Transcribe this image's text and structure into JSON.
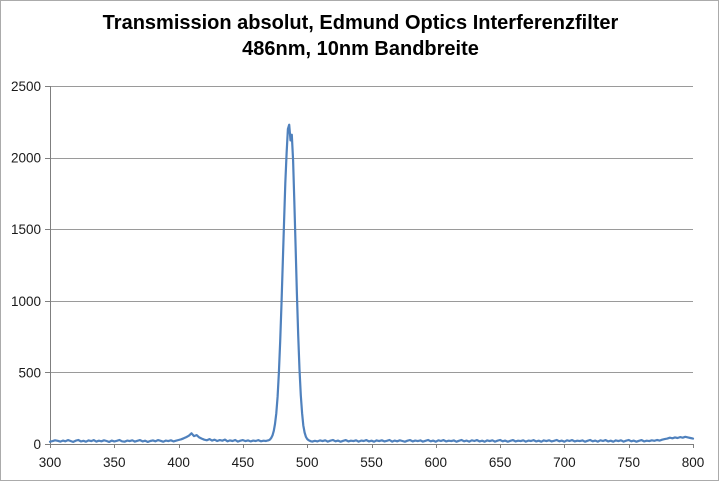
{
  "title": {
    "line1": "Transmission absolut, Edmund Optics Interferenzfilter",
    "line2": "486nm, 10nm Bandbreite"
  },
  "colors": {
    "line": "#4F81BD",
    "gridline": "#9a9a9a",
    "axis": "#7f7f7f",
    "frame_border": "#ababab",
    "tick_text": "#1a1a1a",
    "title_text": "#000000"
  },
  "chart_data": {
    "type": "line",
    "title": "Transmission absolut, Edmund Optics Interferenzfilter 486nm, 10nm Bandbreite",
    "xlabel": "",
    "ylabel": "",
    "xlim": [
      300,
      800
    ],
    "ylim": [
      0,
      2500
    ],
    "x_ticks": [
      300,
      350,
      400,
      450,
      500,
      550,
      600,
      650,
      700,
      750,
      800
    ],
    "y_ticks": [
      0,
      500,
      1000,
      1500,
      2000,
      2500
    ],
    "grid": "horizontal-only",
    "legend_position": "none",
    "peak_summary": {
      "center_nm": 486,
      "peak_value": 2230,
      "fwhm_nm": 10,
      "baseline_value": 20
    },
    "series": [
      {
        "name": "Transmission",
        "color": "#4F81BD",
        "points": [
          [
            300,
            16
          ],
          [
            302,
            20
          ],
          [
            304,
            26
          ],
          [
            306,
            22
          ],
          [
            308,
            17
          ],
          [
            310,
            24
          ],
          [
            312,
            19
          ],
          [
            314,
            27
          ],
          [
            316,
            21
          ],
          [
            318,
            15
          ],
          [
            320,
            23
          ],
          [
            322,
            28
          ],
          [
            324,
            18
          ],
          [
            326,
            22
          ],
          [
            328,
            16
          ],
          [
            330,
            25
          ],
          [
            332,
            20
          ],
          [
            334,
            27
          ],
          [
            336,
            17
          ],
          [
            338,
            23
          ],
          [
            340,
            19
          ],
          [
            342,
            26
          ],
          [
            344,
            21
          ],
          [
            346,
            15
          ],
          [
            348,
            24
          ],
          [
            350,
            18
          ],
          [
            352,
            22
          ],
          [
            354,
            28
          ],
          [
            356,
            19
          ],
          [
            358,
            16
          ],
          [
            360,
            24
          ],
          [
            362,
            20
          ],
          [
            364,
            26
          ],
          [
            366,
            17
          ],
          [
            368,
            22
          ],
          [
            370,
            27
          ],
          [
            372,
            18
          ],
          [
            374,
            23
          ],
          [
            376,
            15
          ],
          [
            378,
            21
          ],
          [
            380,
            25
          ],
          [
            382,
            19
          ],
          [
            384,
            27
          ],
          [
            386,
            22
          ],
          [
            388,
            16
          ],
          [
            390,
            24
          ],
          [
            392,
            20
          ],
          [
            394,
            26
          ],
          [
            396,
            18
          ],
          [
            398,
            23
          ],
          [
            400,
            28
          ],
          [
            402,
            33
          ],
          [
            404,
            40
          ],
          [
            406,
            48
          ],
          [
            408,
            58
          ],
          [
            410,
            75
          ],
          [
            412,
            55
          ],
          [
            414,
            62
          ],
          [
            416,
            46
          ],
          [
            418,
            38
          ],
          [
            420,
            30
          ],
          [
            422,
            26
          ],
          [
            424,
            34
          ],
          [
            426,
            24
          ],
          [
            428,
            30
          ],
          [
            430,
            21
          ],
          [
            432,
            27
          ],
          [
            434,
            23
          ],
          [
            436,
            31
          ],
          [
            438,
            19
          ],
          [
            440,
            25
          ],
          [
            442,
            21
          ],
          [
            444,
            28
          ],
          [
            446,
            17
          ],
          [
            448,
            23
          ],
          [
            450,
            27
          ],
          [
            452,
            20
          ],
          [
            454,
            25
          ],
          [
            456,
            18
          ],
          [
            458,
            24
          ],
          [
            460,
            21
          ],
          [
            462,
            27
          ],
          [
            464,
            19
          ],
          [
            466,
            23
          ],
          [
            468,
            21
          ],
          [
            469,
            24
          ],
          [
            470,
            26
          ],
          [
            471,
            31
          ],
          [
            472,
            42
          ],
          [
            473,
            60
          ],
          [
            474,
            92
          ],
          [
            475,
            140
          ],
          [
            476,
            215
          ],
          [
            477,
            330
          ],
          [
            478,
            500
          ],
          [
            479,
            720
          ],
          [
            480,
            980
          ],
          [
            481,
            1270
          ],
          [
            482,
            1560
          ],
          [
            483,
            1820
          ],
          [
            484,
            2030
          ],
          [
            485,
            2200
          ],
          [
            486,
            2230
          ],
          [
            487,
            2120
          ],
          [
            488,
            2160
          ],
          [
            489,
            1980
          ],
          [
            490,
            1700
          ],
          [
            491,
            1380
          ],
          [
            492,
            1050
          ],
          [
            493,
            760
          ],
          [
            494,
            520
          ],
          [
            495,
            340
          ],
          [
            496,
            215
          ],
          [
            497,
            130
          ],
          [
            498,
            80
          ],
          [
            499,
            50
          ],
          [
            500,
            35
          ],
          [
            501,
            27
          ],
          [
            502,
            22
          ],
          [
            503,
            19
          ],
          [
            504,
            17
          ],
          [
            506,
            22
          ],
          [
            508,
            18
          ],
          [
            510,
            25
          ],
          [
            512,
            20
          ],
          [
            514,
            26
          ],
          [
            516,
            17
          ],
          [
            518,
            23
          ],
          [
            520,
            28
          ],
          [
            522,
            19
          ],
          [
            524,
            24
          ],
          [
            526,
            16
          ],
          [
            528,
            22
          ],
          [
            530,
            27
          ],
          [
            532,
            18
          ],
          [
            534,
            23
          ],
          [
            536,
            20
          ],
          [
            538,
            26
          ],
          [
            540,
            17
          ],
          [
            542,
            24
          ],
          [
            544,
            21
          ],
          [
            546,
            27
          ],
          [
            548,
            18
          ],
          [
            550,
            23
          ],
          [
            552,
            16
          ],
          [
            554,
            25
          ],
          [
            556,
            20
          ],
          [
            558,
            26
          ],
          [
            560,
            18
          ],
          [
            562,
            22
          ],
          [
            564,
            28
          ],
          [
            566,
            17
          ],
          [
            568,
            24
          ],
          [
            570,
            19
          ],
          [
            572,
            26
          ],
          [
            574,
            21
          ],
          [
            576,
            16
          ],
          [
            578,
            23
          ],
          [
            580,
            27
          ],
          [
            582,
            18
          ],
          [
            584,
            24
          ],
          [
            586,
            20
          ],
          [
            588,
            25
          ],
          [
            590,
            17
          ],
          [
            592,
            22
          ],
          [
            594,
            28
          ],
          [
            596,
            19
          ],
          [
            598,
            24
          ],
          [
            600,
            16
          ],
          [
            602,
            26
          ],
          [
            604,
            21
          ],
          [
            606,
            27
          ],
          [
            608,
            18
          ],
          [
            610,
            23
          ],
          [
            612,
            20
          ],
          [
            614,
            25
          ],
          [
            616,
            16
          ],
          [
            618,
            22
          ],
          [
            620,
            28
          ],
          [
            622,
            19
          ],
          [
            624,
            24
          ],
          [
            626,
            17
          ],
          [
            628,
            26
          ],
          [
            630,
            21
          ],
          [
            632,
            27
          ],
          [
            634,
            18
          ],
          [
            636,
            23
          ],
          [
            638,
            16
          ],
          [
            640,
            25
          ],
          [
            642,
            20
          ],
          [
            644,
            26
          ],
          [
            646,
            17
          ],
          [
            648,
            23
          ],
          [
            650,
            28
          ],
          [
            652,
            19
          ],
          [
            654,
            24
          ],
          [
            656,
            16
          ],
          [
            658,
            22
          ],
          [
            660,
            27
          ],
          [
            662,
            18
          ],
          [
            664,
            23
          ],
          [
            666,
            20
          ],
          [
            668,
            26
          ],
          [
            670,
            17
          ],
          [
            672,
            24
          ],
          [
            674,
            21
          ],
          [
            676,
            27
          ],
          [
            678,
            18
          ],
          [
            680,
            23
          ],
          [
            682,
            16
          ],
          [
            684,
            25
          ],
          [
            686,
            20
          ],
          [
            688,
            26
          ],
          [
            690,
            18
          ],
          [
            692,
            22
          ],
          [
            694,
            28
          ],
          [
            696,
            19
          ],
          [
            698,
            24
          ],
          [
            700,
            16
          ],
          [
            702,
            26
          ],
          [
            704,
            21
          ],
          [
            706,
            27
          ],
          [
            708,
            18
          ],
          [
            710,
            23
          ],
          [
            712,
            20
          ],
          [
            714,
            25
          ],
          [
            716,
            16
          ],
          [
            718,
            22
          ],
          [
            720,
            28
          ],
          [
            722,
            19
          ],
          [
            724,
            24
          ],
          [
            726,
            17
          ],
          [
            728,
            26
          ],
          [
            730,
            21
          ],
          [
            732,
            27
          ],
          [
            734,
            18
          ],
          [
            736,
            23
          ],
          [
            738,
            16
          ],
          [
            740,
            25
          ],
          [
            742,
            20
          ],
          [
            744,
            26
          ],
          [
            746,
            17
          ],
          [
            748,
            23
          ],
          [
            750,
            28
          ],
          [
            752,
            19
          ],
          [
            754,
            24
          ],
          [
            756,
            16
          ],
          [
            758,
            22
          ],
          [
            760,
            27
          ],
          [
            762,
            18
          ],
          [
            764,
            23
          ],
          [
            766,
            20
          ],
          [
            768,
            26
          ],
          [
            770,
            22
          ],
          [
            772,
            28
          ],
          [
            774,
            24
          ],
          [
            776,
            30
          ],
          [
            778,
            34
          ],
          [
            780,
            38
          ],
          [
            782,
            44
          ],
          [
            784,
            40
          ],
          [
            786,
            46
          ],
          [
            788,
            42
          ],
          [
            790,
            48
          ],
          [
            792,
            44
          ],
          [
            794,
            50
          ],
          [
            796,
            46
          ],
          [
            798,
            42
          ],
          [
            800,
            38
          ]
        ]
      }
    ]
  }
}
